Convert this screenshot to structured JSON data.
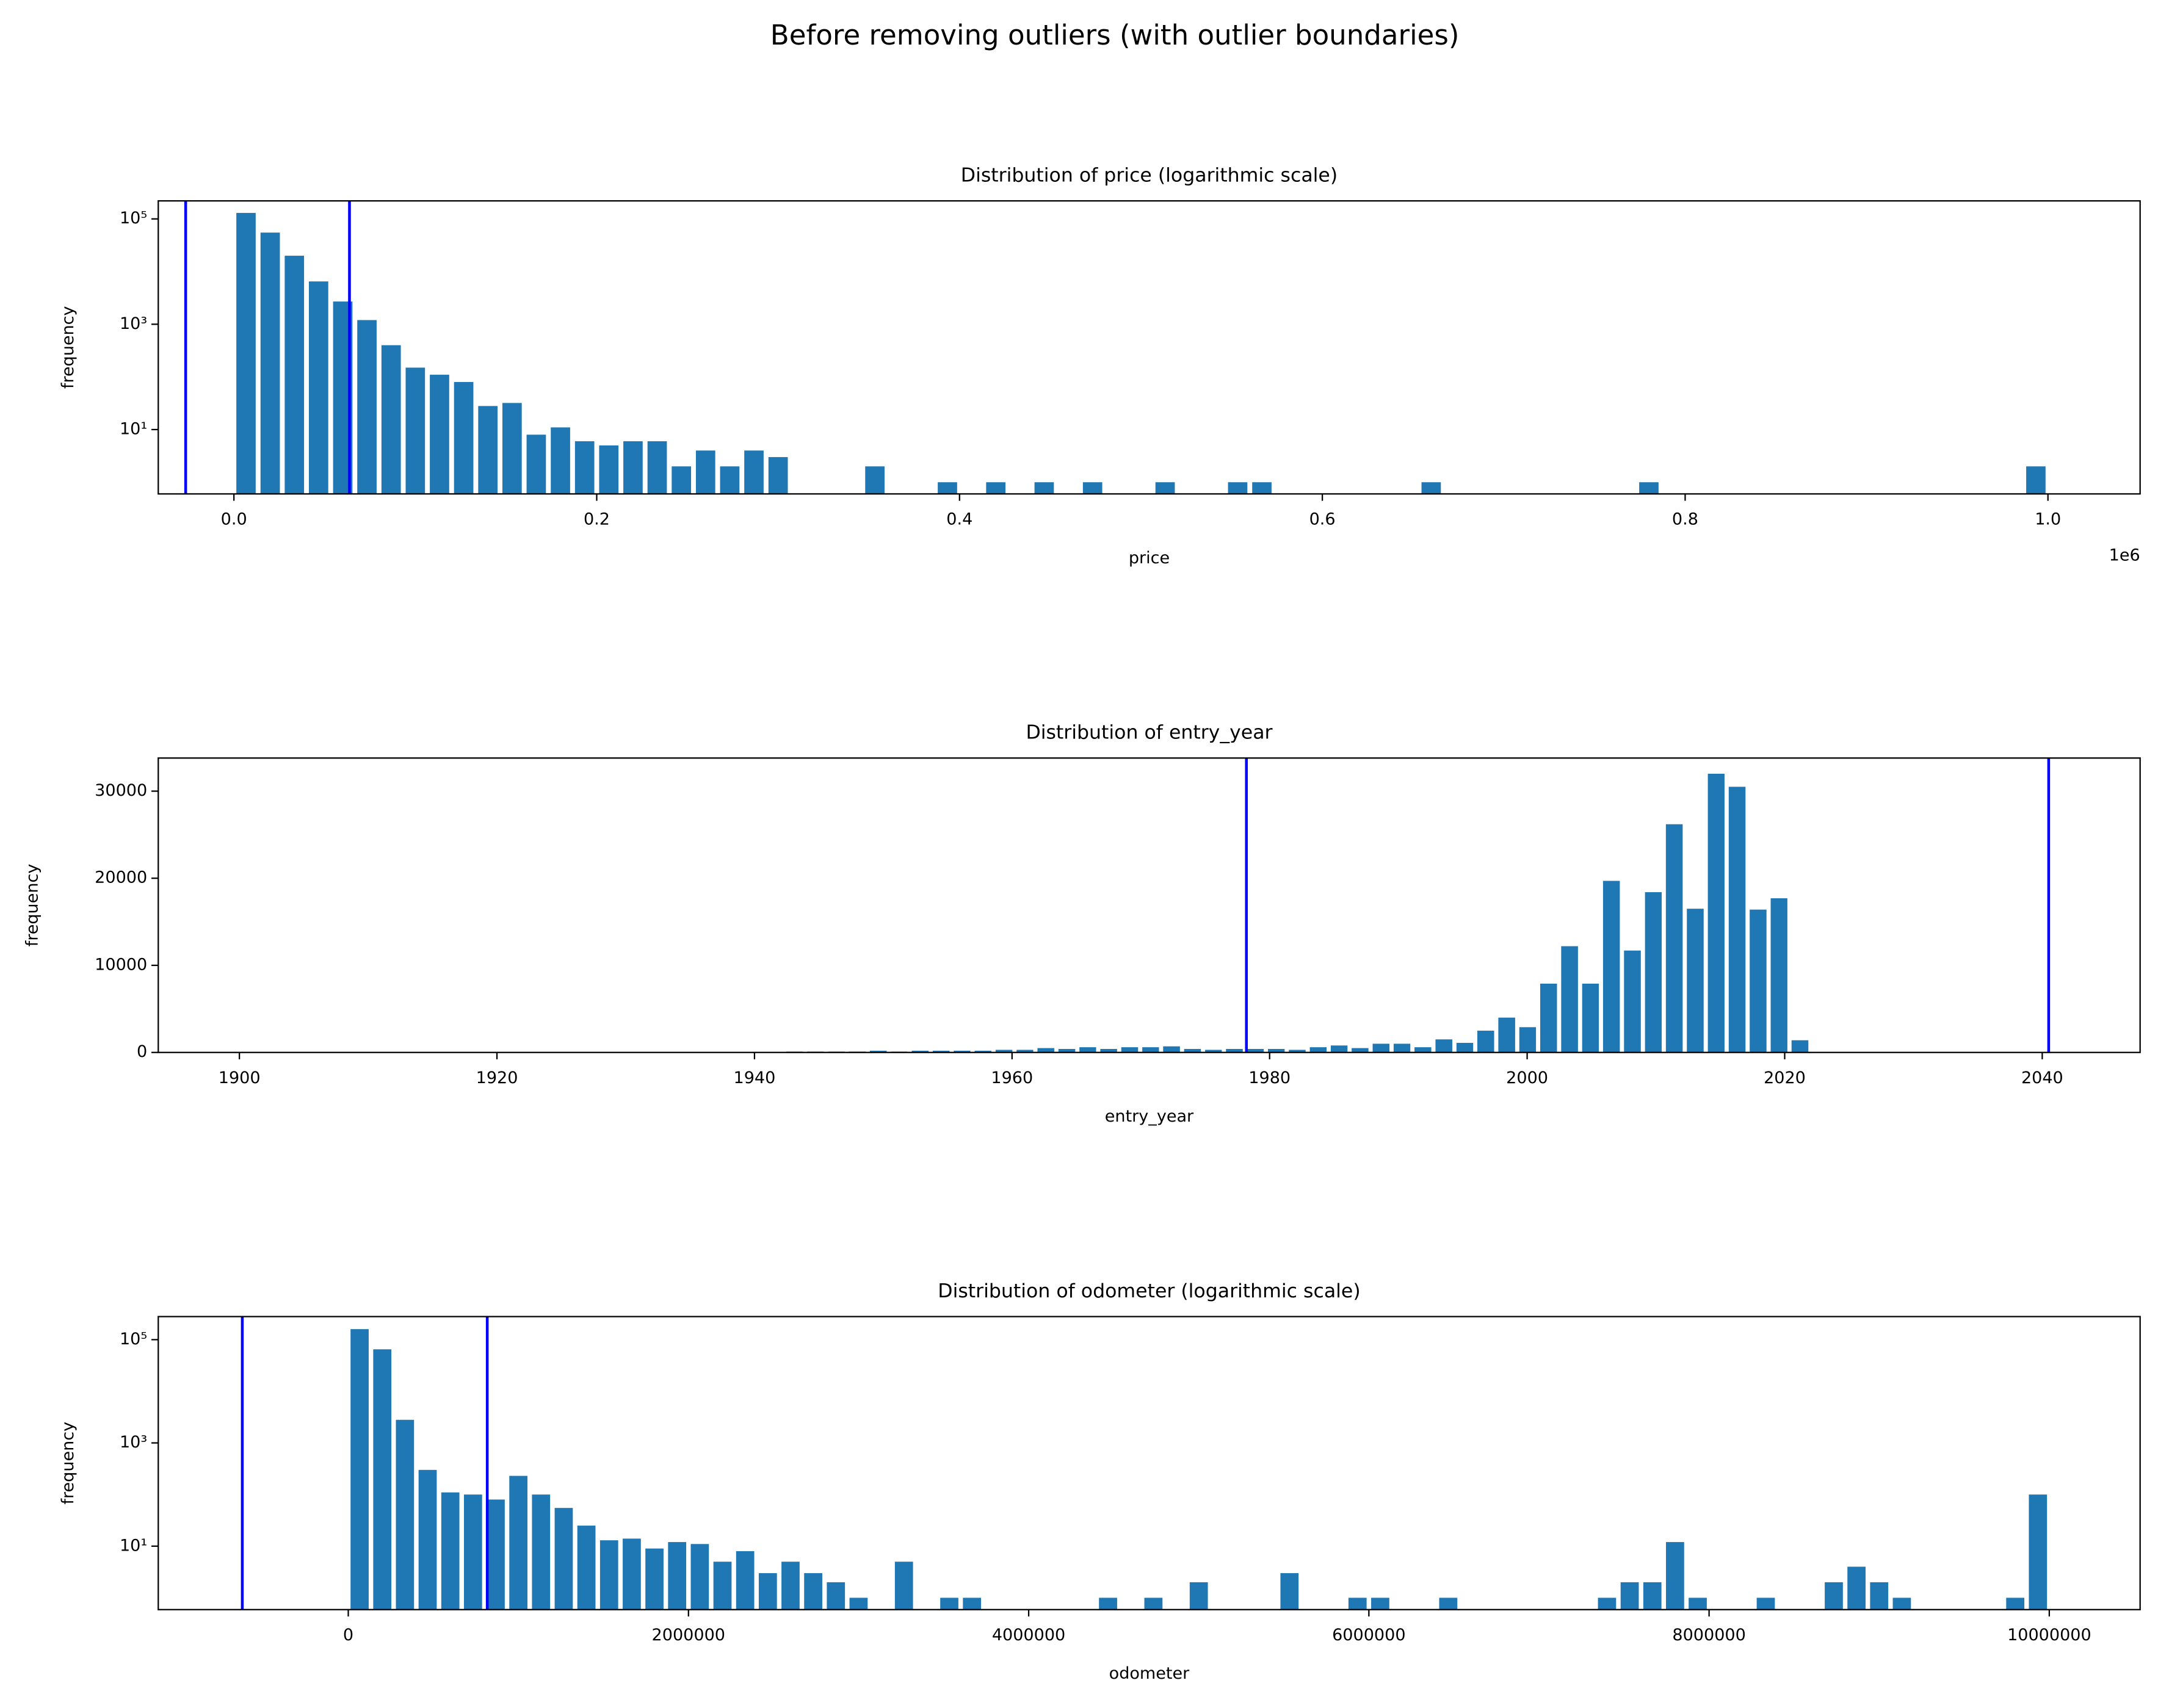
{
  "title": "Before removing outliers (with outlier boundaries)",
  "chart_data": [
    {
      "type": "histogram",
      "title": "Distribution of price (logarithmic scale)",
      "xlabel": "price",
      "ylabel": "frequency",
      "x_offset_text": "1e6",
      "log_y": true,
      "color": "#1f77b4",
      "bins": [
        0,
        13333.33,
        26666.67,
        40000,
        53333.33,
        66666.67,
        80000,
        93333.33,
        106666.67,
        120000,
        133333.33,
        146666.67,
        160000,
        173333.33,
        186666.67,
        200000,
        213333.33,
        226666.67,
        240000,
        253333.33,
        266666.67,
        280000,
        293333.33,
        306666.67,
        320000,
        333333.33,
        346666.67,
        360000,
        373333.33,
        386666.67,
        400000,
        413333.33,
        426666.67,
        440000,
        453333.33,
        466666.67,
        480000,
        493333.33,
        506666.67,
        520000,
        533333.33,
        546666.67,
        560000,
        573333.33,
        586666.67,
        600000,
        613333.33,
        626666.67,
        640000,
        653333.33,
        666666.67,
        680000,
        693333.33,
        706666.67,
        720000,
        733333.33,
        746666.67,
        760000,
        773333.33,
        786666.67,
        800000,
        813333.33,
        826666.67,
        840000,
        853333.33,
        866666.67,
        880000,
        893333.33,
        906666.67,
        920000,
        933333.33,
        946666.67,
        960000,
        973333.33,
        986666.67,
        1000000
      ],
      "counts": [
        130000,
        55000,
        20000,
        6500,
        2700,
        1200,
        400,
        150,
        110,
        80,
        28,
        32,
        8,
        11,
        6,
        5,
        6,
        6,
        2,
        4,
        2,
        4,
        3,
        0,
        0,
        0,
        2,
        0,
        0,
        1,
        0,
        1,
        0,
        1,
        0,
        1,
        0,
        0,
        1,
        0,
        0,
        1,
        1,
        0,
        0,
        0,
        0,
        0,
        0,
        1,
        0,
        0,
        0,
        0,
        0,
        0,
        0,
        0,
        1,
        0,
        0,
        0,
        0,
        0,
        0,
        0,
        0,
        0,
        0,
        0,
        0,
        0,
        0,
        0,
        2
      ],
      "xlim": [
        -41700,
        1050800
      ],
      "ylim": [
        0.6,
        220000
      ],
      "xticks": [
        {
          "value": 0,
          "label": "0.0"
        },
        {
          "value": 200000,
          "label": "0.2"
        },
        {
          "value": 400000,
          "label": "0.4"
        },
        {
          "value": 600000,
          "label": "0.6"
        },
        {
          "value": 800000,
          "label": "0.8"
        },
        {
          "value": 1000000,
          "label": "1.0"
        }
      ],
      "yticks": [
        {
          "value": 10,
          "label": "10¹"
        },
        {
          "value": 1000,
          "label": "10³"
        },
        {
          "value": 100000,
          "label": "10⁵"
        }
      ],
      "vlines": [
        -26600,
        63700
      ],
      "vline_color": "#0000ff"
    },
    {
      "type": "histogram",
      "title": "Distribution of entry_year",
      "xlabel": "entry_year",
      "ylabel": "frequency",
      "log_y": false,
      "color": "#1f77b4",
      "bins": [
        1900,
        1901.63,
        1903.25,
        1904.88,
        1906.51,
        1908.13,
        1909.76,
        1911.39,
        1913.01,
        1914.64,
        1916.27,
        1917.89,
        1919.52,
        1921.15,
        1922.77,
        1924.4,
        1926.03,
        1927.65,
        1929.28,
        1930.91,
        1932.53,
        1934.16,
        1935.79,
        1937.41,
        1939.04,
        1940.67,
        1942.29,
        1943.92,
        1945.55,
        1947.17,
        1948.8,
        1950.43,
        1952.05,
        1953.68,
        1955.31,
        1956.93,
        1958.56,
        1960.19,
        1961.81,
        1963.44,
        1965.07,
        1966.69,
        1968.32,
        1969.95,
        1971.57,
        1973.2,
        1974.83,
        1976.45,
        1978.08,
        1979.71,
        1981.33,
        1982.96,
        1984.59,
        1986.21,
        1987.84,
        1989.47,
        1991.09,
        1992.72,
        1994.35,
        1995.97,
        1997.6,
        1999.23,
        2000.85,
        2002.48,
        2004.11,
        2005.73,
        2007.36,
        2008.99,
        2010.61,
        2012.24,
        2013.87,
        2015.49,
        2017.12,
        2018.75,
        2020.37,
        2022
      ],
      "counts": [
        5,
        0,
        0,
        0,
        0,
        0,
        0,
        0,
        0,
        0,
        0,
        0,
        0,
        0,
        0,
        0,
        0,
        0,
        0,
        0,
        10,
        10,
        20,
        30,
        50,
        50,
        100,
        100,
        100,
        100,
        200,
        100,
        200,
        200,
        200,
        200,
        300,
        300,
        500,
        400,
        600,
        400,
        600,
        600,
        700,
        400,
        300,
        400,
        400,
        400,
        300,
        600,
        800,
        500,
        1000,
        1000,
        600,
        1500,
        1100,
        2500,
        4000,
        2900,
        7900,
        12200,
        7900,
        19700,
        11700,
        18400,
        26200,
        16500,
        32000,
        30500,
        16400,
        17700,
        1400
      ],
      "xlim": [
        1893.7,
        2047.6
      ],
      "ylim": [
        0,
        33800
      ],
      "xticks": [
        1900,
        1920,
        1940,
        1960,
        1980,
        2000,
        2020,
        2040
      ],
      "yticks": [
        0,
        10000,
        20000,
        30000
      ],
      "vlines": [
        1978.2,
        2040.5
      ],
      "vline_color": "#0000ff"
    },
    {
      "type": "histogram",
      "title": "Distribution of odometer (logarithmic scale)",
      "xlabel": "odometer",
      "ylabel": "frequency",
      "log_y": true,
      "color": "#1f77b4",
      "bins": [
        0,
        133333.3,
        266666.7,
        400000,
        533333.3,
        666666.7,
        800000,
        933333.3,
        1066666.7,
        1200000,
        1333333.3,
        1466666.7,
        1600000,
        1733333.3,
        1866666.7,
        2000000,
        2133333.3,
        2266666.7,
        2400000,
        2533333.3,
        2666666.7,
        2800000,
        2933333.3,
        3066666.7,
        3200000,
        3333333.3,
        3466666.7,
        3600000,
        3733333.3,
        3866666.7,
        4000000,
        4133333.3,
        4266666.7,
        4400000,
        4533333.3,
        4666666.7,
        4800000,
        4933333.3,
        5066666.7,
        5200000,
        5333333.3,
        5466666.7,
        5600000,
        5733333.3,
        5866666.7,
        6000000,
        6133333.3,
        6266666.7,
        6400000,
        6533333.3,
        6666666.7,
        6800000,
        6933333.3,
        7066666.7,
        7200000,
        7333333.3,
        7466666.7,
        7600000,
        7733333.3,
        7866666.7,
        8000000,
        8133333.3,
        8266666.7,
        8400000,
        8533333.3,
        8666666.7,
        8800000,
        8933333.3,
        9066666.7,
        9200000,
        9333333.3,
        9466666.7,
        9600000,
        9733333.3,
        9866666.7,
        10000000
      ],
      "counts": [
        160000,
        65000,
        2800,
        300,
        110,
        100,
        80,
        230,
        100,
        55,
        25,
        13,
        14,
        9,
        12,
        11,
        5,
        8,
        3,
        5,
        3,
        2,
        1,
        0,
        5,
        0,
        1,
        1,
        0,
        0,
        0,
        0,
        0,
        1,
        0,
        1,
        0,
        2,
        0,
        0,
        0,
        3,
        0,
        0,
        1,
        1,
        0,
        0,
        1,
        0,
        0,
        0,
        0,
        0,
        0,
        1,
        2,
        2,
        12,
        1,
        0,
        0,
        1,
        0,
        0,
        2,
        4,
        2,
        1,
        0,
        0,
        0,
        0,
        1,
        100
      ],
      "xlim": [
        -1117000,
        10534000
      ],
      "ylim": [
        0.59,
        280000
      ],
      "xticks": [
        0,
        2000000,
        4000000,
        6000000,
        8000000,
        10000000
      ],
      "yticks": [
        {
          "value": 10,
          "label": "10¹"
        },
        {
          "value": 1000,
          "label": "10³"
        },
        {
          "value": 100000,
          "label": "10⁵"
        }
      ],
      "vlines": [
        -623000,
        817000
      ],
      "vline_color": "#0000ff"
    }
  ]
}
